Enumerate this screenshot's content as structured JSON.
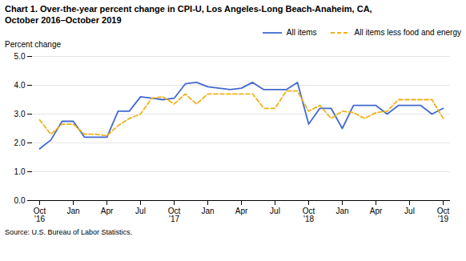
{
  "chart_data": {
    "type": "line",
    "title": "Chart 1. Over-the-year percent change in CPI-U, Los Angeles-Long Beach-Anaheim, CA,",
    "subtitle": "October 2016–October 2019",
    "ylabel": "Percent change",
    "source": "Source: U.S. Bureau of Labor Statistics.",
    "categories": [
      "Oct\n'16",
      null,
      null,
      "Jan",
      null,
      null,
      "Apr",
      null,
      null,
      "Jul",
      null,
      null,
      "Oct\n'17",
      null,
      null,
      "Jan",
      null,
      null,
      "Apr",
      null,
      null,
      "Jul",
      null,
      null,
      "Oct\n'18",
      null,
      null,
      "Jan",
      null,
      null,
      "Apr",
      null,
      null,
      "Jul",
      null,
      null,
      "Oct\n'19"
    ],
    "series": [
      {
        "name": "All items",
        "line_style": "solid",
        "values": [
          1.8,
          2.1,
          2.75,
          2.75,
          2.2,
          2.2,
          2.2,
          3.1,
          3.1,
          3.6,
          3.55,
          3.5,
          3.55,
          4.05,
          4.1,
          3.95,
          3.9,
          3.85,
          3.9,
          4.1,
          3.85,
          3.85,
          3.85,
          4.1,
          2.65,
          3.2,
          3.2,
          2.5,
          3.3,
          3.3,
          3.3,
          3.0,
          3.3,
          3.3,
          3.3,
          3.0,
          3.2
        ]
      },
      {
        "name": "All items less food and energy",
        "line_style": "dashed",
        "values": [
          2.8,
          2.3,
          2.65,
          2.65,
          2.3,
          2.3,
          2.25,
          2.6,
          2.85,
          3.0,
          3.55,
          3.6,
          3.35,
          3.7,
          3.35,
          3.7,
          3.7,
          3.7,
          3.7,
          3.7,
          3.2,
          3.2,
          3.8,
          3.8,
          3.1,
          3.3,
          2.85,
          3.1,
          3.05,
          2.85,
          3.05,
          3.1,
          3.5,
          3.5,
          3.5,
          3.5,
          2.85
        ]
      }
    ],
    "ylim": [
      0.0,
      5.0
    ],
    "yticks": [
      {
        "value": 0,
        "label": "0.0"
      },
      {
        "value": 1,
        "label": "1.0"
      },
      {
        "value": 2,
        "label": "2.0"
      },
      {
        "value": 3,
        "label": "3.0"
      },
      {
        "value": 4,
        "label": "4.0"
      },
      {
        "value": 5,
        "label": "5.0"
      }
    ],
    "grid": true,
    "legend": "top-right"
  }
}
